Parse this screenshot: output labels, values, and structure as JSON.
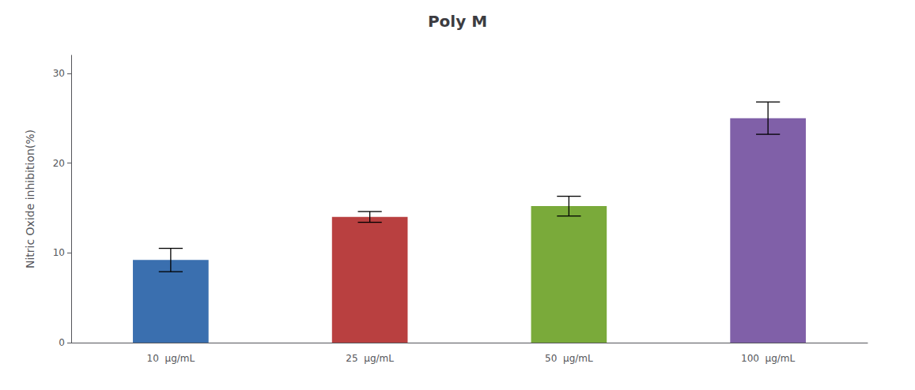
{
  "chart_data": {
    "type": "bar",
    "title": "Poly M",
    "ylabel": "Nitric Oxide inhibition(%)",
    "categories": [
      "10  μg/mL",
      "25  μg/mL",
      "50  μg/mL",
      "100  μg/mL"
    ],
    "values": [
      9.2,
      14.0,
      15.2,
      25.0
    ],
    "errors": [
      1.3,
      0.6,
      1.1,
      1.8
    ],
    "colors": [
      "#3a6faf",
      "#b94040",
      "#7aaa3a",
      "#8060a8"
    ],
    "ylim": [
      0,
      32
    ],
    "yticks": [
      0,
      10,
      20,
      30
    ],
    "grid": false
  }
}
